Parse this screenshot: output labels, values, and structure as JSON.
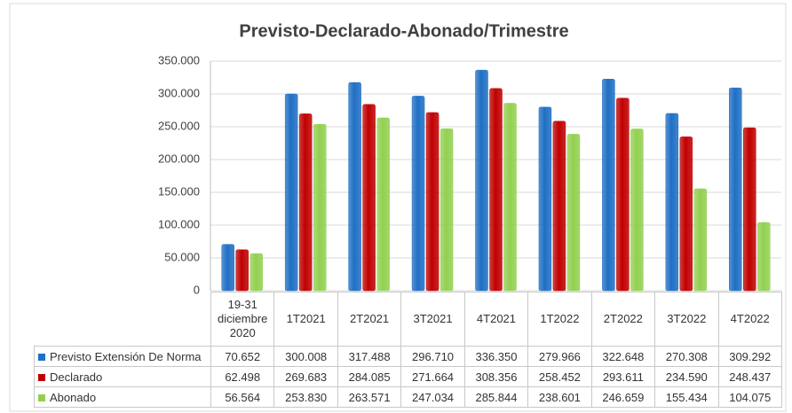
{
  "chart_data": {
    "type": "bar",
    "title": "Previsto-Declarado-Abonado/Trimestre",
    "categories": [
      "19-31 diciembre 2020",
      "1T2021",
      "2T2021",
      "3T2021",
      "4T2021",
      "1T2022",
      "2T2022",
      "3T2022",
      "4T2022"
    ],
    "series": [
      {
        "name": "Previsto Extensión De Norma",
        "color": "#1f6fc4",
        "values": [
          70652,
          300008,
          317488,
          296710,
          336350,
          279966,
          322648,
          270308,
          309292
        ],
        "value_labels": [
          "70.652",
          "300.008",
          "317.488",
          "296.710",
          "336.350",
          "279.966",
          "322.648",
          "270.308",
          "309.292"
        ]
      },
      {
        "name": "Declarado",
        "color": "#c00000",
        "values": [
          62498,
          269683,
          284085,
          271664,
          308356,
          258452,
          293611,
          234590,
          248437
        ],
        "value_labels": [
          "62.498",
          "269.683",
          "284.085",
          "271.664",
          "308.356",
          "258.452",
          "293.611",
          "234.590",
          "248.437"
        ]
      },
      {
        "name": "Abonado",
        "color": "#92d050",
        "values": [
          56564,
          253830,
          263571,
          247034,
          285844,
          238601,
          246659,
          155434,
          104075
        ],
        "value_labels": [
          "56.564",
          "253.830",
          "263.571",
          "247.034",
          "285.844",
          "238.601",
          "246.659",
          "155.434",
          "104.075"
        ]
      }
    ],
    "ylim": [
      0,
      350000
    ],
    "yticks": [
      0,
      {
        "value": 50000,
        "label": "50.000"
      },
      {
        "value": 100000,
        "label": "100.000"
      },
      {
        "value": 150000,
        "label": "150.000"
      },
      {
        "value": 200000,
        "label": "200.000"
      },
      {
        "value": 250000,
        "label": "250.000"
      },
      {
        "value": 300000,
        "label": "300.000"
      },
      {
        "value": 350000,
        "label": "350.000"
      }
    ],
    "grid": true,
    "legend": "table"
  }
}
